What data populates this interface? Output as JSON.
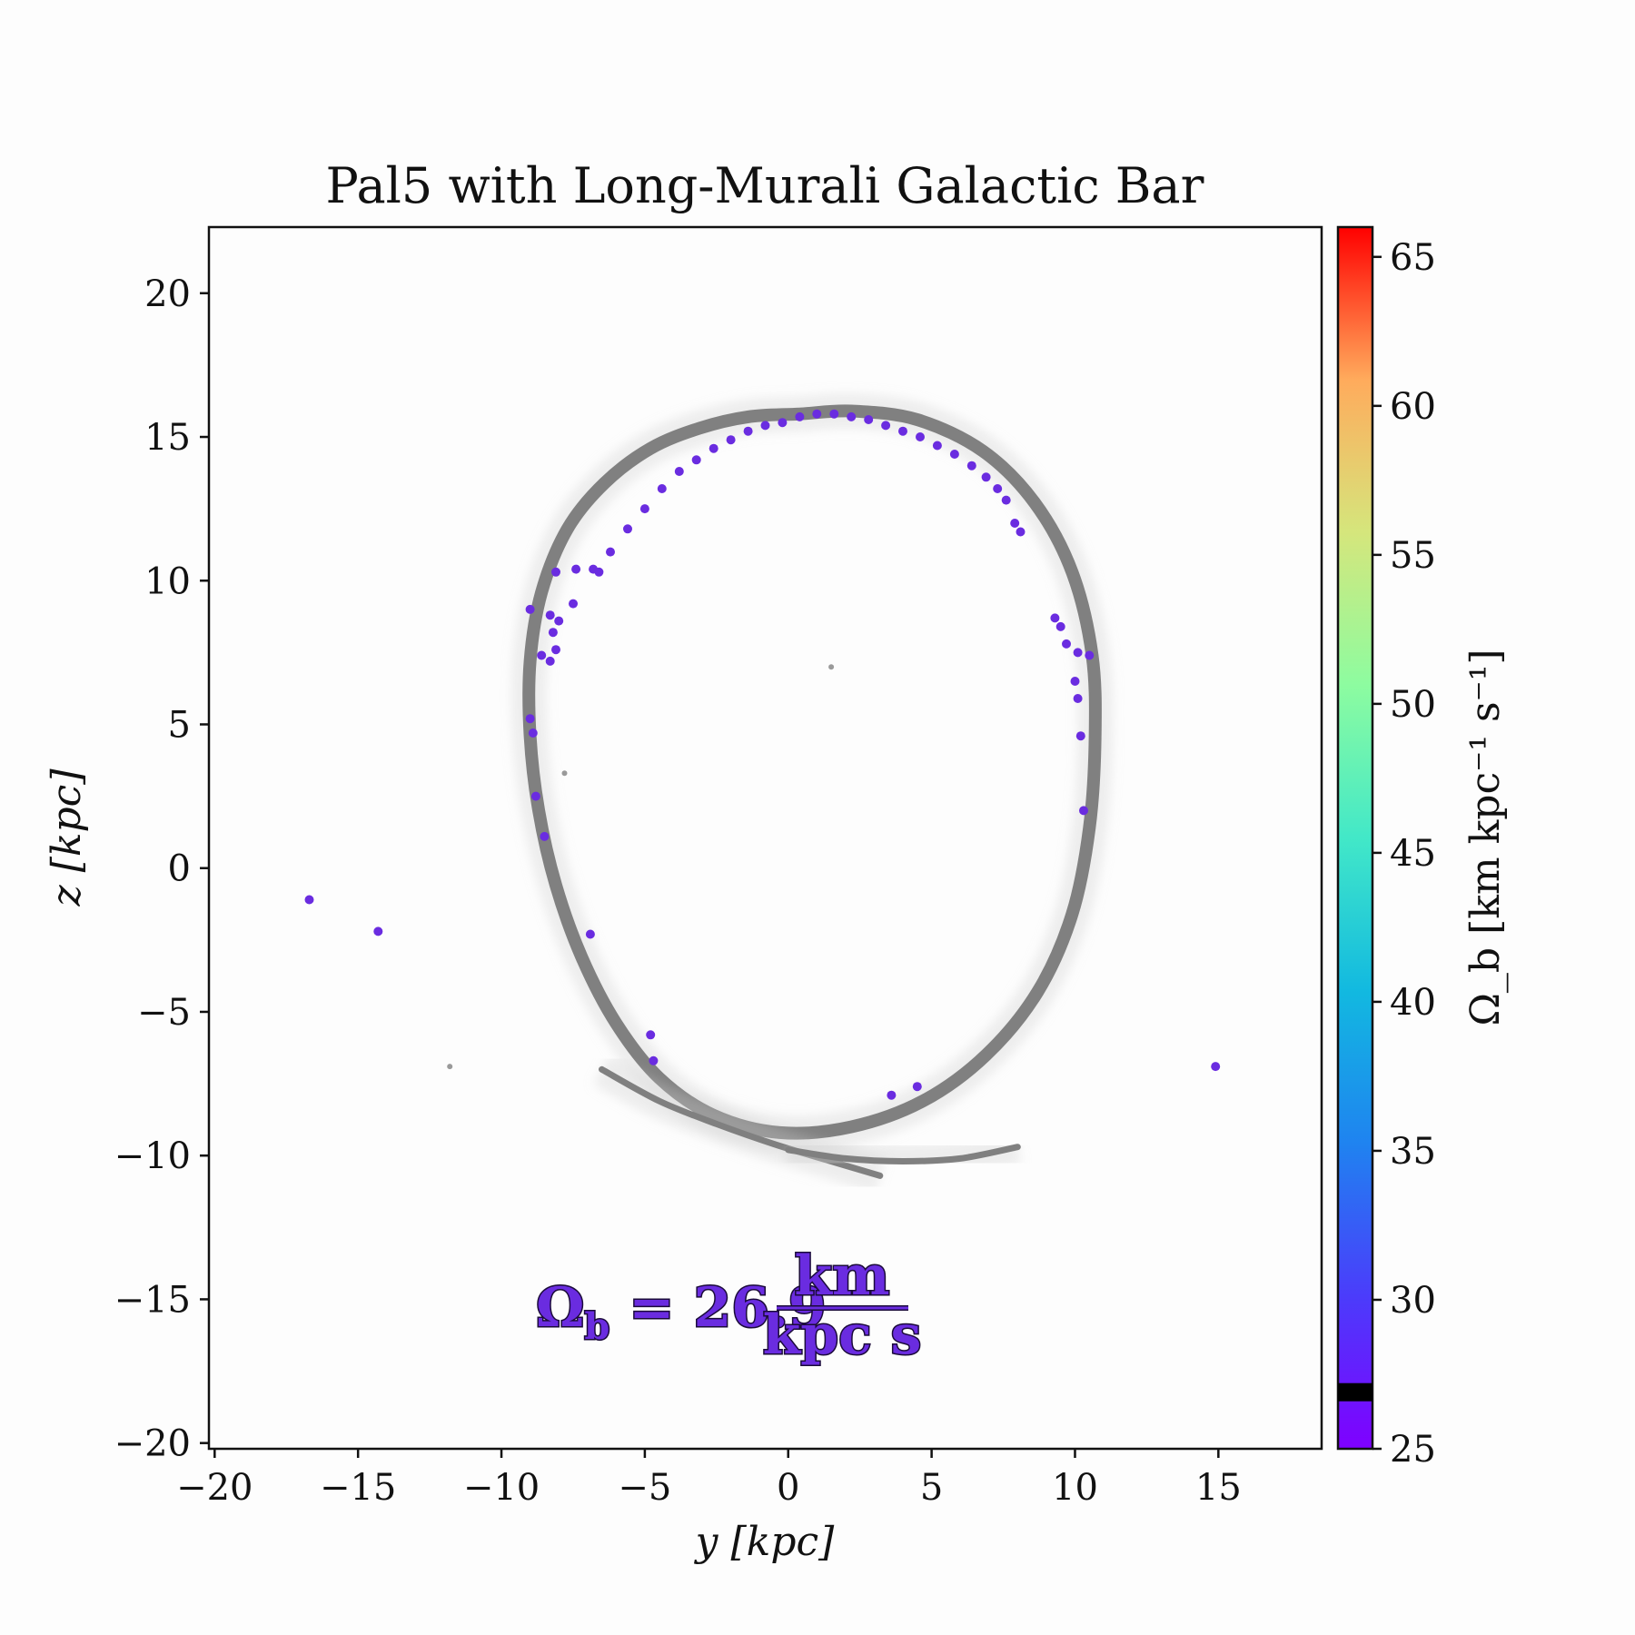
{
  "chart_data": {
    "type": "scatter",
    "title": "Pal5 with Long-Murali Galactic Bar",
    "xlabel": "y [kpc]",
    "ylabel": "z [kpc]",
    "xlim": [
      -20.2,
      18.6
    ],
    "ylim": [
      -20.2,
      22.3
    ],
    "xticks": [
      -20,
      -15,
      -10,
      -5,
      0,
      5,
      10,
      15
    ],
    "xtick_labels": [
      "−20",
      "−15",
      "−10",
      "−5",
      "0",
      "5",
      "10",
      "15"
    ],
    "yticks": [
      20,
      15,
      10,
      5,
      0,
      -5,
      -10,
      -15,
      -20
    ],
    "ytick_labels": [
      "20",
      "15",
      "10",
      "5",
      "0",
      "−5",
      "−10",
      "−15",
      "−20"
    ],
    "grid": false,
    "colorbar": {
      "label": "Ω_b [km kpc⁻¹ s⁻¹]",
      "range": [
        25,
        66
      ],
      "ticks": [
        25,
        30,
        35,
        40,
        45,
        50,
        55,
        60,
        65
      ],
      "tick_labels": [
        "25",
        "30",
        "35",
        "40",
        "45",
        "50",
        "55",
        "60",
        "65"
      ],
      "colormap": "rainbow",
      "current_value": 26.9,
      "marker_color": "#000000"
    },
    "annotation": {
      "lhs": "Ω",
      "subscript": "b",
      "equals": " = ",
      "value": "26.9",
      "unit_numerator": "km",
      "unit_denominator": "kpc s",
      "color": "#6a2ce0"
    },
    "series": [
      {
        "role": "stream",
        "color": "#808080",
        "points": [
          [
            0.4,
            15.8
          ],
          [
            -1.4,
            15.7
          ],
          [
            -3.1,
            15.3
          ],
          [
            -4.8,
            14.6
          ],
          [
            -6.4,
            13.4
          ],
          [
            -7.7,
            11.8
          ],
          [
            -8.6,
            9.6
          ],
          [
            -9.0,
            7.2
          ],
          [
            -9.0,
            4.6
          ],
          [
            -8.7,
            2.0
          ],
          [
            -8.1,
            -0.6
          ],
          [
            -7.2,
            -3.1
          ],
          [
            -6.0,
            -5.4
          ],
          [
            -4.5,
            -7.3
          ],
          [
            -2.6,
            -8.6
          ],
          [
            -0.3,
            -9.2
          ],
          [
            2.2,
            -9.0
          ],
          [
            4.7,
            -8.1
          ],
          [
            6.9,
            -6.5
          ],
          [
            8.7,
            -4.3
          ],
          [
            9.9,
            -1.6
          ],
          [
            10.5,
            1.4
          ],
          [
            10.7,
            4.5
          ],
          [
            10.6,
            7.4
          ],
          [
            9.9,
            10.3
          ],
          [
            8.6,
            12.7
          ],
          [
            6.8,
            14.5
          ],
          [
            4.5,
            15.6
          ],
          [
            2.2,
            15.9
          ]
        ]
      },
      {
        "role": "stream-tail",
        "color": "#808080",
        "points": [
          [
            -6.5,
            -7.0
          ],
          [
            -4.5,
            -8.1
          ],
          [
            -2.5,
            -8.9
          ],
          [
            -0.5,
            -9.6
          ],
          [
            1.5,
            -10.2
          ],
          [
            3.2,
            -10.7
          ]
        ]
      },
      {
        "role": "stream-tail",
        "color": "#808080",
        "points": [
          [
            0.0,
            -9.8
          ],
          [
            2.0,
            -10.1
          ],
          [
            4.0,
            -10.2
          ],
          [
            6.0,
            -10.1
          ],
          [
            8.0,
            -9.7
          ]
        ]
      },
      {
        "role": "particles",
        "name": "Ω_b = 26.9",
        "color": "#6a2ce0",
        "points": [
          [
            -6.8,
            10.4
          ],
          [
            -6.2,
            11.0
          ],
          [
            -5.6,
            11.8
          ],
          [
            -5.0,
            12.5
          ],
          [
            -4.4,
            13.2
          ],
          [
            -3.8,
            13.8
          ],
          [
            -3.2,
            14.2
          ],
          [
            -2.6,
            14.6
          ],
          [
            -2.0,
            14.9
          ],
          [
            -1.4,
            15.2
          ],
          [
            -0.8,
            15.4
          ],
          [
            -0.2,
            15.5
          ],
          [
            0.4,
            15.7
          ],
          [
            1.0,
            15.8
          ],
          [
            1.6,
            15.8
          ],
          [
            2.2,
            15.7
          ],
          [
            2.8,
            15.6
          ],
          [
            3.4,
            15.4
          ],
          [
            4.0,
            15.2
          ],
          [
            4.6,
            15.0
          ],
          [
            5.2,
            14.7
          ],
          [
            5.8,
            14.4
          ],
          [
            6.4,
            14.0
          ],
          [
            6.9,
            13.6
          ],
          [
            7.3,
            13.2
          ],
          [
            7.6,
            12.8
          ],
          [
            -8.1,
            10.3
          ],
          [
            -7.4,
            10.4
          ],
          [
            -6.6,
            10.3
          ],
          [
            -9.0,
            9.0
          ],
          [
            -7.5,
            9.2
          ],
          [
            -8.3,
            8.8
          ],
          [
            -8.0,
            8.6
          ],
          [
            -8.2,
            8.2
          ],
          [
            -8.6,
            7.4
          ],
          [
            -8.3,
            7.2
          ],
          [
            -8.1,
            7.6
          ],
          [
            -9.0,
            5.2
          ],
          [
            -8.9,
            4.7
          ],
          [
            -8.8,
            2.5
          ],
          [
            -8.5,
            1.1
          ],
          [
            -6.9,
            -2.3
          ],
          [
            -16.7,
            -1.1
          ],
          [
            -14.3,
            -2.2
          ],
          [
            -4.8,
            -5.8
          ],
          [
            -4.7,
            -6.7
          ],
          [
            3.6,
            -7.9
          ],
          [
            4.5,
            -7.6
          ],
          [
            14.9,
            -6.9
          ],
          [
            9.3,
            8.7
          ],
          [
            9.5,
            8.4
          ],
          [
            9.7,
            7.8
          ],
          [
            10.1,
            7.5
          ],
          [
            10.5,
            7.4
          ],
          [
            10.0,
            6.5
          ],
          [
            10.1,
            5.9
          ],
          [
            10.2,
            4.6
          ],
          [
            10.3,
            2.0
          ],
          [
            8.1,
            11.7
          ],
          [
            7.9,
            12.0
          ]
        ]
      },
      {
        "role": "outliers",
        "color": "#9a9a9a",
        "points": [
          [
            1.5,
            7.0
          ],
          [
            -7.8,
            3.3
          ],
          [
            -11.8,
            -6.9
          ]
        ]
      }
    ]
  }
}
